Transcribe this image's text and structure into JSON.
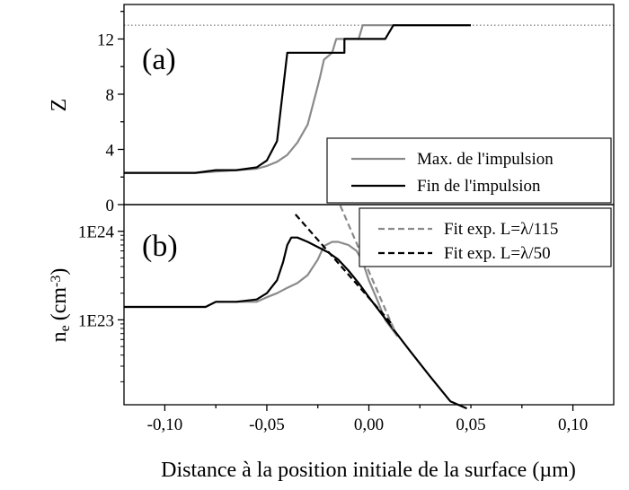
{
  "chart_data": [
    {
      "panel": "(a)",
      "type": "line",
      "xlabel": "Distance à la position initiale de la surface (µm)",
      "ylabel": "Z",
      "xlim": [
        -0.12,
        0.12
      ],
      "ylim": [
        0,
        14.5
      ],
      "x_ticks": [
        -0.1,
        -0.05,
        0.0,
        0.05,
        0.1
      ],
      "x_tick_labels": [
        "-0,10",
        "-0,05",
        "0,00",
        "0,05",
        "0,10"
      ],
      "y_ticks": [
        0,
        4,
        8,
        12
      ],
      "y_tick_labels": [
        "0",
        "4",
        "8",
        "12"
      ],
      "reference_line": {
        "y": 13,
        "style": "dotted"
      },
      "legend": {
        "placement": "bottom-right"
      },
      "series": [
        {
          "name": "Max. de l'impulsion",
          "color": "#8a8a8a",
          "x": [
            -0.12,
            -0.1,
            -0.085,
            -0.075,
            -0.065,
            -0.055,
            -0.05,
            -0.045,
            -0.04,
            -0.035,
            -0.03,
            -0.025,
            -0.024,
            -0.022,
            -0.018,
            -0.016,
            -0.012,
            -0.008,
            -0.005,
            -0.003,
            0.005,
            0.006,
            0.05
          ],
          "y": [
            2.3,
            2.3,
            2.3,
            2.4,
            2.5,
            2.6,
            2.8,
            3.1,
            3.6,
            4.5,
            5.8,
            8.6,
            9.2,
            10.5,
            11.0,
            12.0,
            12.0,
            12.0,
            12.0,
            13.0,
            13.0,
            13.0,
            13.0
          ]
        },
        {
          "name": "Fin de l'impulsion",
          "color": "#000000",
          "x": [
            -0.12,
            -0.1,
            -0.085,
            -0.075,
            -0.065,
            -0.055,
            -0.05,
            -0.045,
            -0.04,
            -0.038,
            -0.02,
            -0.012,
            -0.012,
            0.008,
            0.012,
            0.012,
            0.05
          ],
          "y": [
            2.3,
            2.3,
            2.3,
            2.5,
            2.5,
            2.7,
            3.2,
            4.6,
            11.0,
            11.0,
            11.0,
            11.0,
            12.0,
            12.0,
            13.0,
            13.0,
            13.0
          ]
        }
      ]
    },
    {
      "panel": "(b)",
      "type": "line",
      "xlabel": "Distance à la position initiale de la surface (µm)",
      "ylabel": "ne (cm-3)",
      "ylabel_main": "n",
      "ylabel_sub": "e",
      "ylabel_unit": "(cm",
      "ylabel_sup": "-3",
      "ylabel_close": ")",
      "y_scale": "log",
      "xlim": [
        -0.12,
        0.12
      ],
      "ylim": [
        1.1e+22,
        2e+24
      ],
      "x_ticks": [
        -0.1,
        -0.05,
        0.0,
        0.05,
        0.1
      ],
      "x_tick_labels": [
        "-0,10",
        "-0,05",
        "0,00",
        "0,05",
        "0,10"
      ],
      "y_ticks": [
        1e+23,
        1e+24
      ],
      "y_tick_labels": [
        "1E23",
        "1E24"
      ],
      "legend": {
        "placement": "top-right"
      },
      "series": [
        {
          "name": "Max. de l'impulsion",
          "color": "#8a8a8a",
          "style": "solid",
          "x": [
            -0.12,
            -0.1,
            -0.08,
            -0.075,
            -0.065,
            -0.055,
            -0.05,
            -0.045,
            -0.04,
            -0.035,
            -0.03,
            -0.025,
            -0.022,
            -0.018,
            -0.015,
            -0.01,
            -0.006,
            -0.003,
            0.0,
            0.004,
            0.008,
            0.014
          ],
          "y": [
            1.4e+23,
            1.4e+23,
            1.4e+23,
            1.6e+23,
            1.6e+23,
            1.6e+23,
            1.8e+23,
            2e+23,
            2.3e+23,
            2.6e+23,
            3.2e+23,
            4.8e+23,
            6.8e+23,
            7.6e+23,
            7.6e+23,
            7e+23,
            6e+23,
            4.5e+23,
            2.8e+23,
            1.7e+23,
            1e+23,
            6.5e+22
          ]
        },
        {
          "name": "Fin de l'impulsion",
          "color": "#000000",
          "style": "solid",
          "x": [
            -0.12,
            -0.1,
            -0.08,
            -0.075,
            -0.065,
            -0.055,
            -0.05,
            -0.045,
            -0.042,
            -0.04,
            -0.038,
            -0.035,
            -0.03,
            -0.02,
            -0.015,
            -0.01,
            -0.005,
            0.0,
            0.01,
            0.02,
            0.03,
            0.04,
            0.048
          ],
          "y": [
            1.4e+23,
            1.4e+23,
            1.4e+23,
            1.6e+23,
            1.6e+23,
            1.7e+23,
            2e+23,
            2.8e+23,
            4.5e+23,
            7e+23,
            8.5e+23,
            8.5e+23,
            7.6e+23,
            5.8e+23,
            4.8e+23,
            3.6e+23,
            2.6e+23,
            1.8e+23,
            9e+22,
            4.5e+22,
            2.3e+22,
            1.2e+22,
            1e+22
          ]
        },
        {
          "name": "Fit exp. L=λ/115",
          "color": "#8a8a8a",
          "style": "dashed",
          "x": [
            -0.014,
            0.013
          ],
          "y": [
            1.95e+24,
            7.2e+22
          ]
        },
        {
          "name": "Fit exp. L=λ/50",
          "color": "#000000",
          "style": "dashed",
          "x": [
            -0.036,
            0.012
          ],
          "y": [
            1.55e+24,
            8.6e+22
          ]
        }
      ]
    }
  ]
}
